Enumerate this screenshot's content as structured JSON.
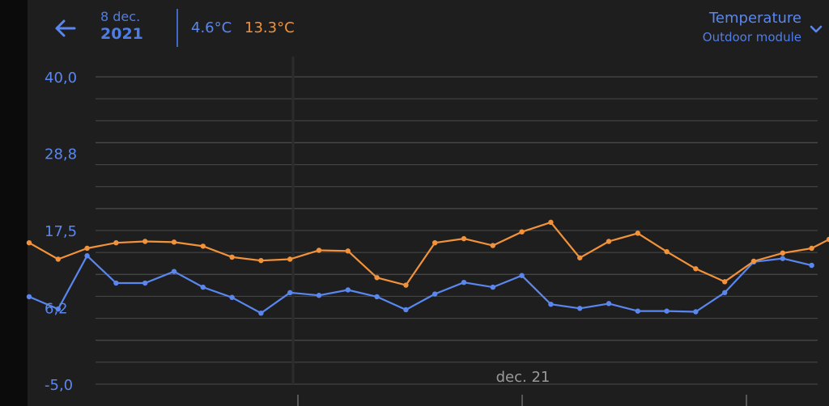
{
  "header": {
    "back_icon": "arrow-left-icon",
    "date_day": "8 dec.",
    "date_year": "2021",
    "min_temp": "4.6°C",
    "max_temp": "13.3°C",
    "metric_title": "Temperature",
    "metric_subtitle": "Outdoor module",
    "dropdown_icon": "chevron-down-icon"
  },
  "colors": {
    "background": "#1e1e1e",
    "accent_blue": "#5a87ef",
    "accent_orange": "#f2923a",
    "grid": "#4a4a4a"
  },
  "chart_data": {
    "type": "line",
    "y_tick_labels": [
      "40,0",
      "28,8",
      "17,5",
      "6,2",
      "-5,0"
    ],
    "y_tick_values": [
      40.0,
      28.8,
      17.5,
      6.2,
      -5.0
    ],
    "ylim": [
      -5.0,
      40.0
    ],
    "x_tick_labels": [
      "dec. 21"
    ],
    "grid": true,
    "series": [
      {
        "color": "#5a87ef",
        "values": [
          7.8,
          6.0,
          13.8,
          9.8,
          9.8,
          11.5,
          9.2,
          7.7,
          5.4,
          8.4,
          8.0,
          8.8,
          7.8,
          5.9,
          8.2,
          9.9,
          9.2,
          10.9,
          6.7,
          6.1,
          6.8,
          5.7,
          5.7,
          5.6,
          8.4,
          12.9,
          13.4,
          12.4
        ],
        "x": [
          0,
          1,
          2,
          3,
          4,
          5,
          6,
          7,
          8,
          9,
          10,
          11,
          12,
          13,
          14,
          15,
          16,
          17,
          18,
          19,
          20,
          21,
          22,
          23,
          24,
          25,
          26,
          27
        ]
      },
      {
        "color": "#f2923a",
        "values": [
          15.7,
          13.3,
          14.9,
          15.7,
          15.9,
          15.8,
          15.2,
          13.6,
          13.1,
          13.3,
          14.6,
          14.5,
          10.6,
          9.5,
          15.7,
          16.3,
          15.3,
          17.3,
          18.7,
          13.5,
          15.9,
          17.1,
          14.4,
          11.9,
          10.0,
          13.0,
          14.2,
          14.9,
          16.2
        ],
        "x": [
          0,
          1,
          2,
          3,
          4,
          5,
          6,
          7,
          8,
          9,
          10,
          11,
          12,
          13,
          14,
          15,
          16,
          17,
          18,
          19,
          20,
          21,
          22,
          23,
          24,
          25,
          26,
          27,
          27.6
        ]
      }
    ]
  }
}
